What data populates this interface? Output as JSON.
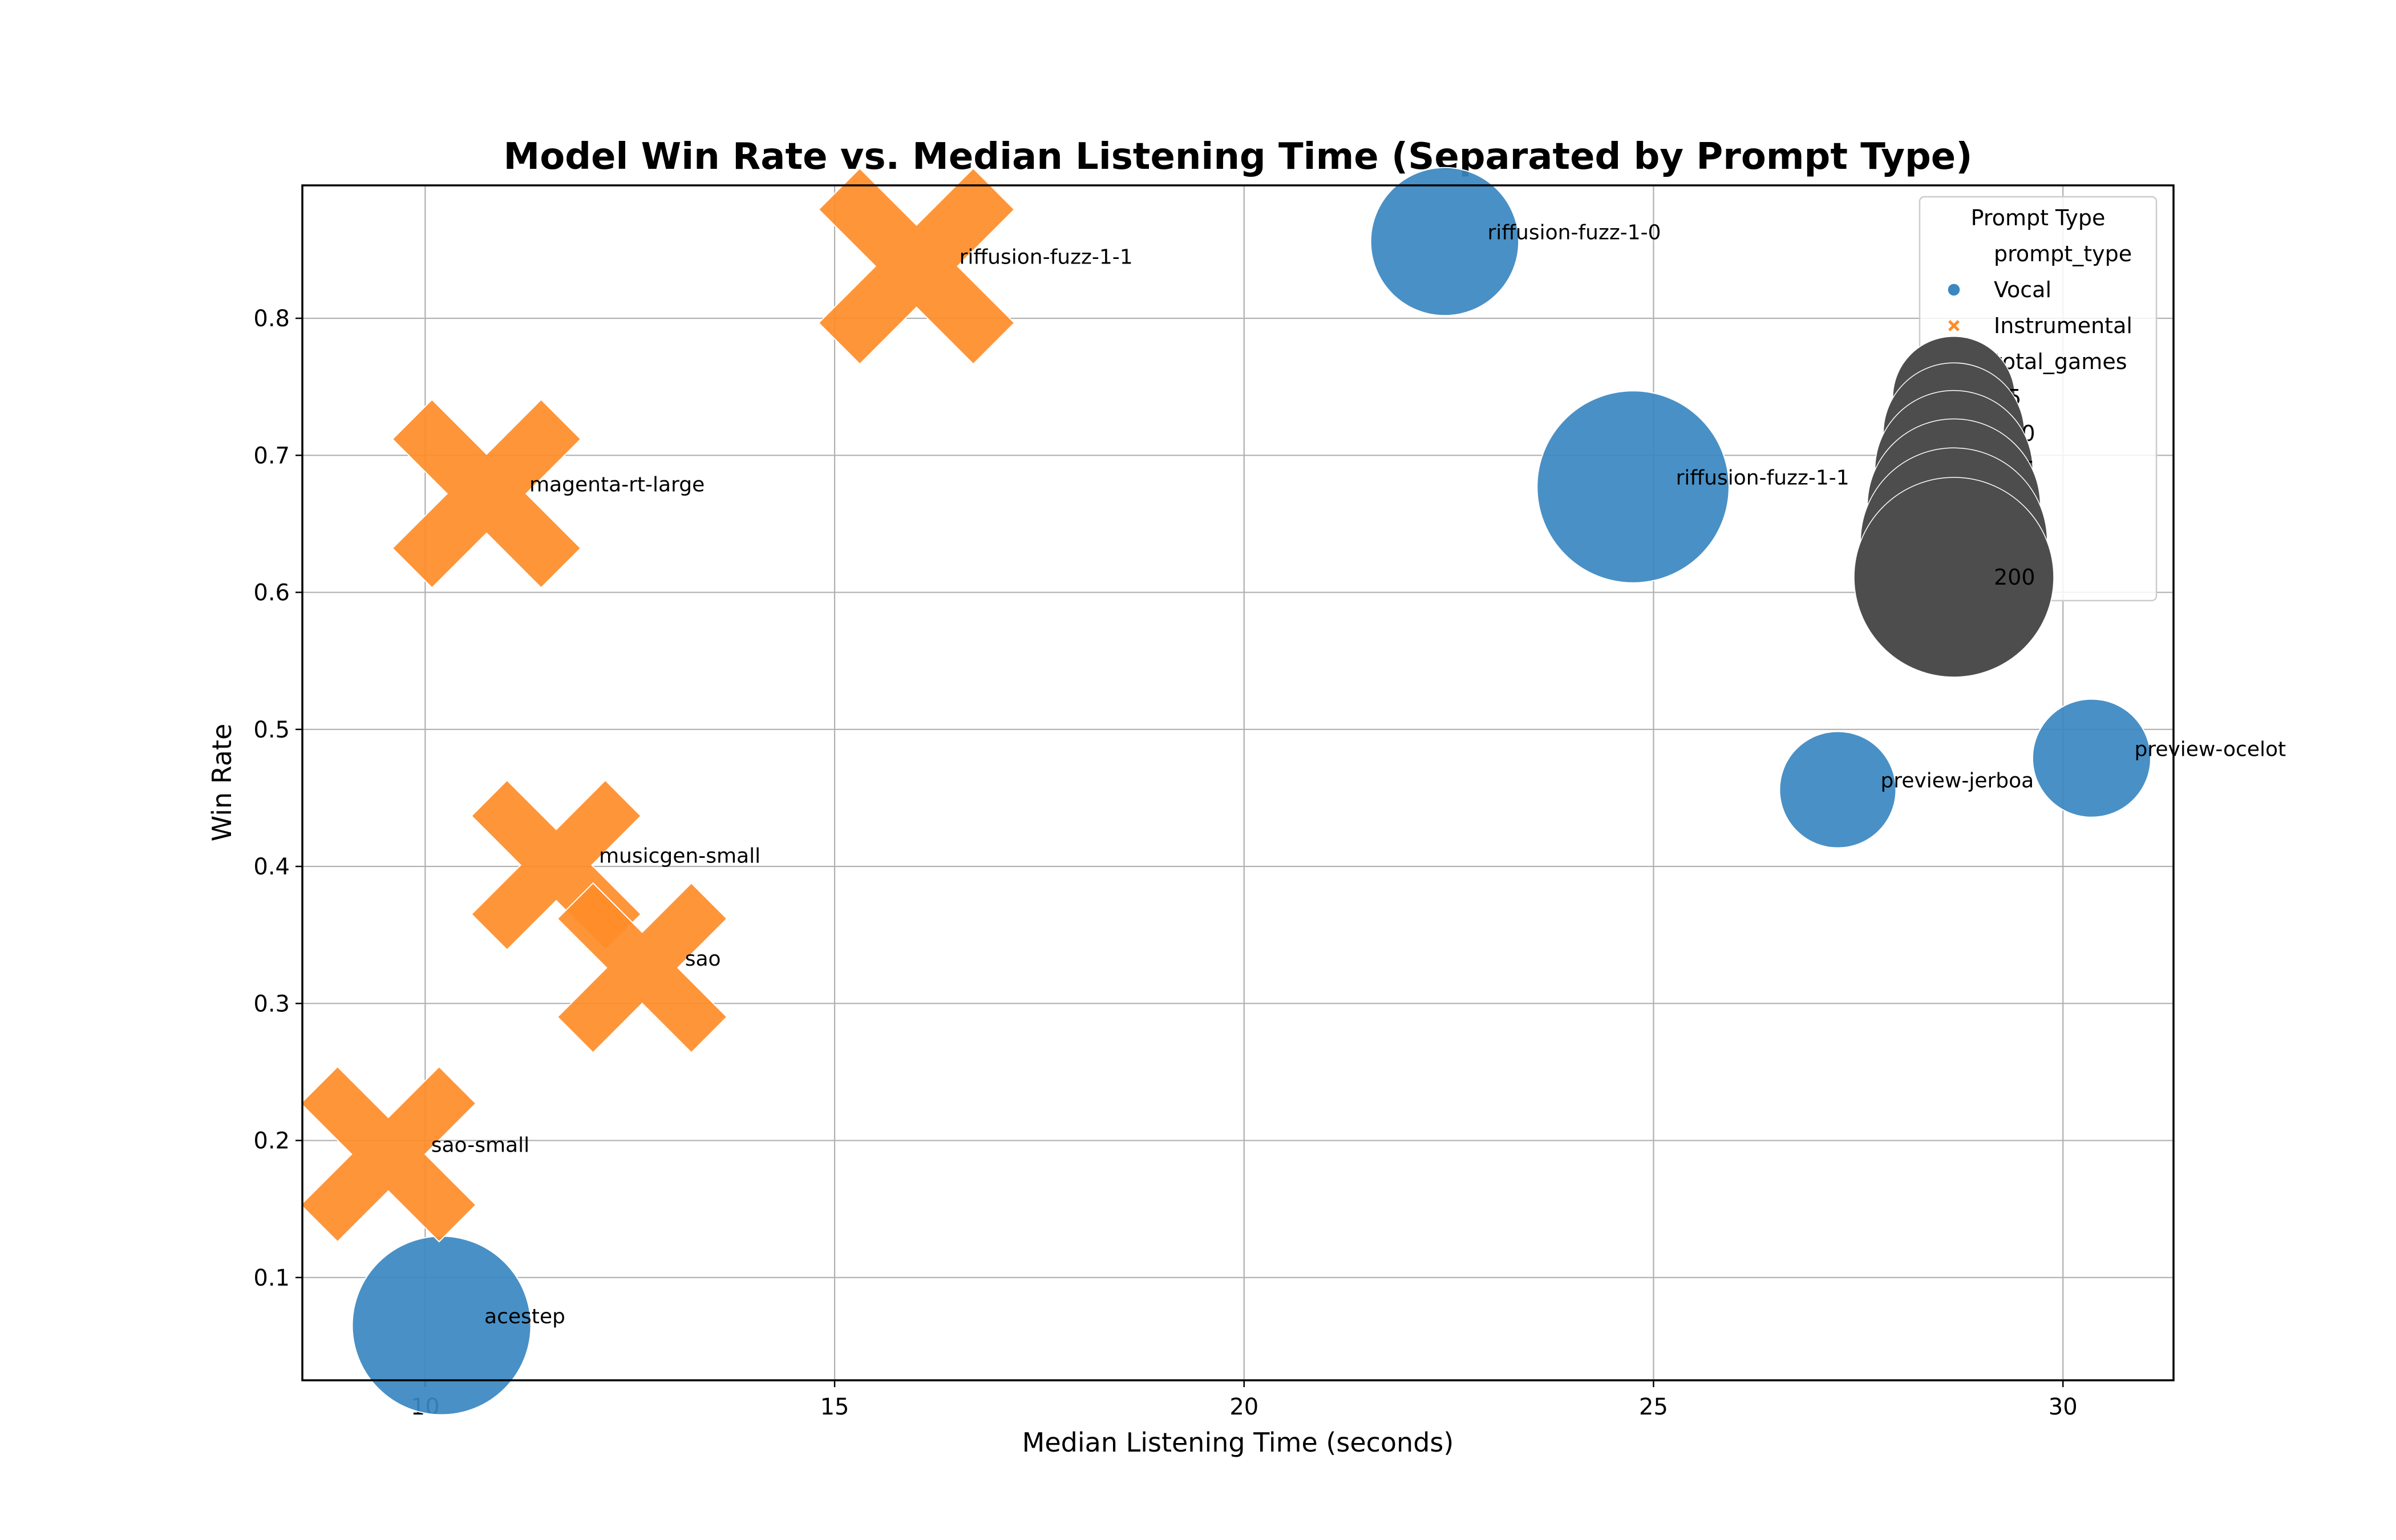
{
  "chart_data": {
    "type": "scatter",
    "title": "Model Win Rate vs. Median Listening Time (Separated by Prompt Type)",
    "xlabel": "Median Listening Time (seconds)",
    "ylabel": "Win Rate",
    "xlim": [
      8.5,
      31.35
    ],
    "ylim": [
      0.025,
      0.897
    ],
    "xticks": [
      10,
      15,
      20,
      25,
      30
    ],
    "xtick_labels": [
      "10",
      "15",
      "20",
      "25",
      "30"
    ],
    "yticks": [
      0.1,
      0.2,
      0.3,
      0.4,
      0.5,
      0.6,
      0.7,
      0.8
    ],
    "ytick_labels": [
      "0.1",
      "0.2",
      "0.3",
      "0.4",
      "0.5",
      "0.6",
      "0.7",
      "0.8"
    ],
    "grid": true,
    "series": [
      {
        "name": "Vocal",
        "marker": "circle",
        "color": "#3a87c1",
        "points": [
          {
            "label": "riffusion-fuzz-1-0",
            "x": 22.45,
            "y": 0.856,
            "total_games": 110
          },
          {
            "label": "riffusion-fuzz-1-1",
            "x": 24.75,
            "y": 0.677,
            "total_games": 185
          },
          {
            "label": "preview-jerboa",
            "x": 27.25,
            "y": 0.456,
            "total_games": 68
          },
          {
            "label": "preview-ocelot",
            "x": 30.35,
            "y": 0.479,
            "total_games": 70
          },
          {
            "label": "acestep",
            "x": 10.2,
            "y": 0.065,
            "total_games": 160
          }
        ]
      },
      {
        "name": "Instrumental",
        "marker": "x",
        "color": "#ff8c28",
        "points": [
          {
            "label": "riffusion-fuzz-1-1",
            "x": 16.0,
            "y": 0.838,
            "total_games": 200
          },
          {
            "label": "magenta-rt-large",
            "x": 10.75,
            "y": 0.672,
            "total_games": 185
          },
          {
            "label": "musicgen-small",
            "x": 11.6,
            "y": 0.401,
            "total_games": 150
          },
          {
            "label": "sao",
            "x": 12.65,
            "y": 0.326,
            "total_games": 150
          },
          {
            "label": "sao-small",
            "x": 9.55,
            "y": 0.19,
            "total_games": 160
          }
        ]
      }
    ],
    "legend": {
      "title": "Prompt Type",
      "placement": "top-right",
      "hue_header": "prompt_type",
      "size_header": "total_games",
      "size_entries": [
        "75",
        "100",
        "125",
        "150",
        "175",
        "200"
      ],
      "size_color": "#4d4d4d"
    }
  }
}
